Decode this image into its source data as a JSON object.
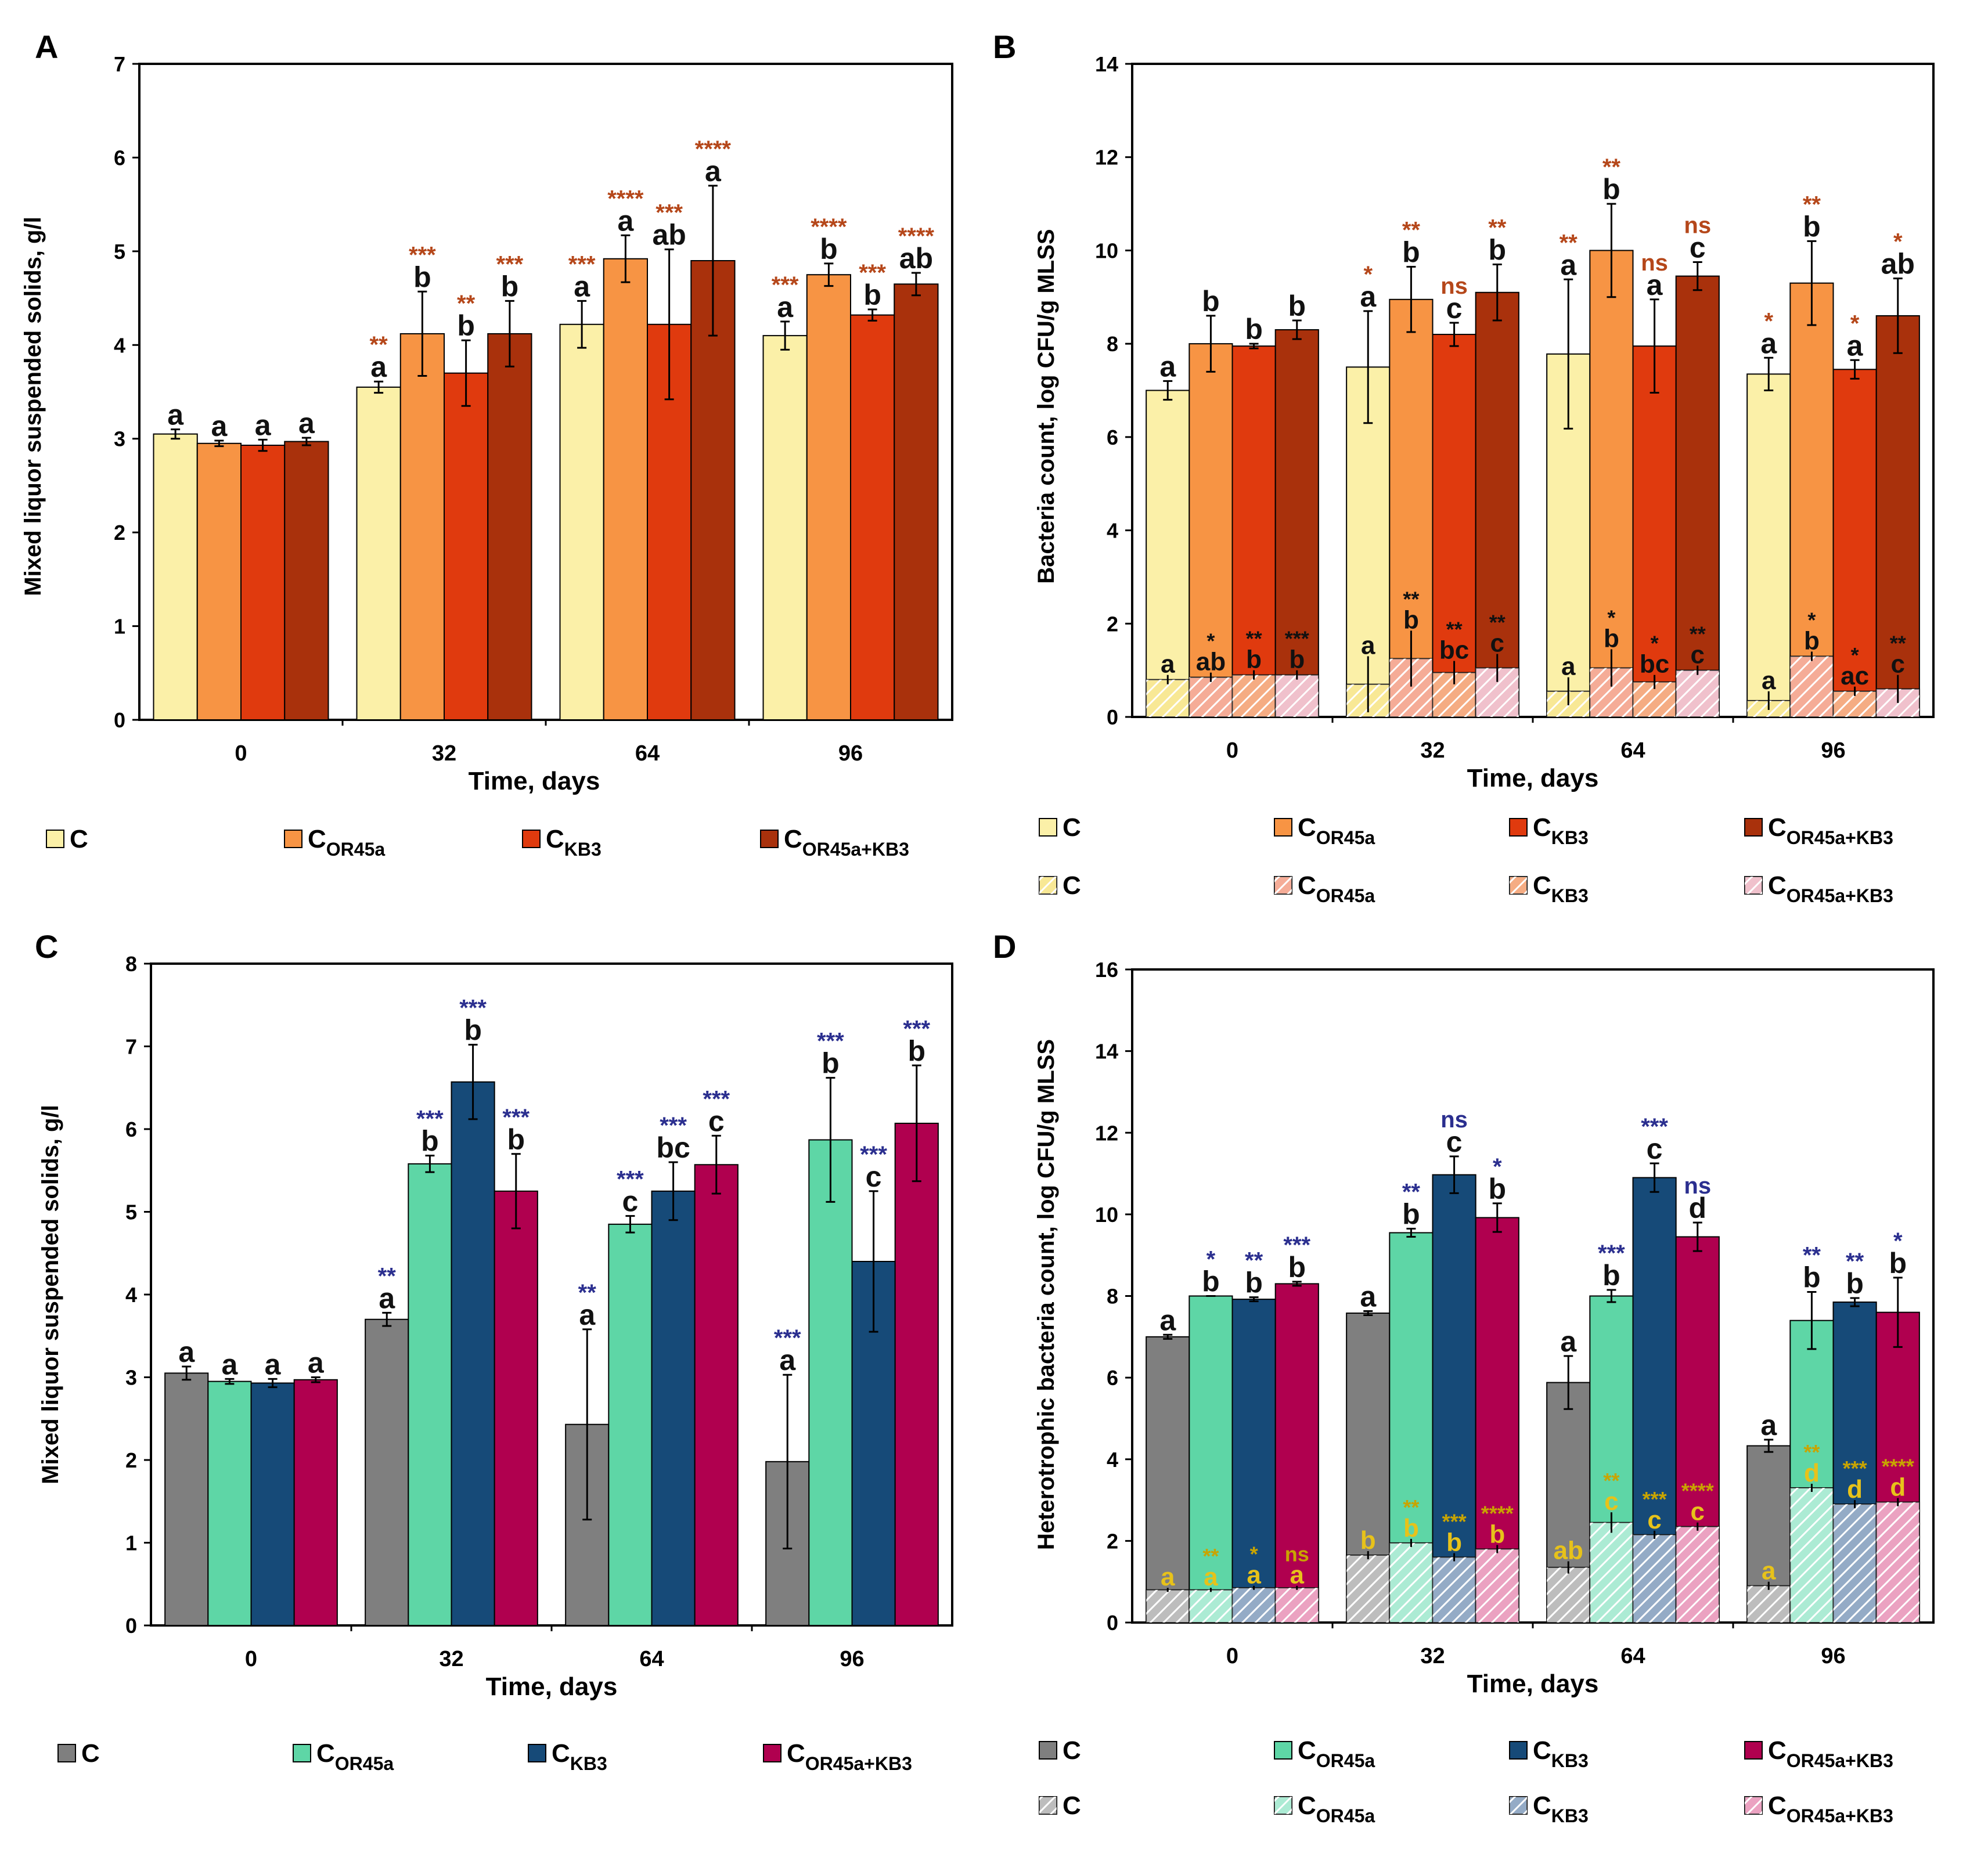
{
  "chart_data": [
    {
      "panel": "A",
      "type": "bar",
      "ylabel": "Mixed liquor suspended solids, g/l",
      "xlabel": "Time, days",
      "ylim": [
        0,
        7
      ],
      "yticks": [
        "0",
        "1",
        "2",
        "3",
        "4",
        "5",
        "6",
        "7"
      ],
      "categories": [
        "0",
        "32",
        "64",
        "96"
      ],
      "star_color": "#b5471a",
      "series": [
        {
          "name": "C",
          "color": "#fbf0a8",
          "values": [
            3.05,
            3.55,
            4.22,
            4.1
          ],
          "errors": [
            0.05,
            0.06,
            0.25,
            0.15
          ]
        },
        {
          "name": "COR45a",
          "color": "#f79444",
          "values": [
            2.95,
            4.12,
            4.92,
            4.75
          ],
          "errors": [
            0.03,
            0.45,
            0.25,
            0.12
          ]
        },
        {
          "name": "CKB3",
          "color": "#e03a0e",
          "values": [
            2.93,
            3.7,
            4.22,
            4.32
          ],
          "errors": [
            0.06,
            0.35,
            0.8,
            0.06
          ]
        },
        {
          "name": "COR45a+KB3",
          "color": "#a9310c",
          "values": [
            2.97,
            4.12,
            4.9,
            4.65
          ],
          "errors": [
            0.04,
            0.35,
            0.8,
            0.12
          ]
        }
      ],
      "letters": [
        [
          "a",
          "a",
          "a",
          "a"
        ],
        [
          "a",
          "b",
          "a",
          "b"
        ],
        [
          "a",
          "b",
          "ab",
          "b"
        ],
        [
          "a",
          "b",
          "a",
          "ab"
        ]
      ],
      "stars": [
        [
          "",
          "",
          "",
          ""
        ],
        [
          "**",
          "***",
          "**",
          "***"
        ],
        [
          "***",
          "****",
          "***",
          "****"
        ],
        [
          "***",
          "****",
          "***",
          "****"
        ]
      ],
      "legend": {
        "solid": [
          {
            "label": "C",
            "sub": ""
          },
          {
            "label": "C",
            "sub": "OR45a"
          },
          {
            "label": "C",
            "sub": "KB3"
          },
          {
            "label": "C",
            "sub": "OR45a+KB3"
          }
        ]
      }
    },
    {
      "panel": "B",
      "type": "bar",
      "ylabel": "Bacteria count, log CFU/g MLSS",
      "xlabel": "Time, days",
      "ylim": [
        0,
        14
      ],
      "yticks": [
        "0",
        "2",
        "4",
        "6",
        "8",
        "10",
        "12",
        "14"
      ],
      "categories": [
        "0",
        "32",
        "64",
        "96"
      ],
      "star_color": "#b5471a",
      "series": [
        {
          "name": "C",
          "color": "#fbf0a8",
          "values": [
            7.0,
            7.5,
            7.78,
            7.35
          ],
          "errors": [
            0.2,
            1.2,
            1.6,
            0.35
          ]
        },
        {
          "name": "COR45a",
          "color": "#f79444",
          "values": [
            8.0,
            8.95,
            10.0,
            9.3
          ],
          "errors": [
            0.6,
            0.7,
            1.0,
            0.9
          ]
        },
        {
          "name": "CKB3",
          "color": "#e03a0e",
          "values": [
            7.95,
            8.2,
            7.95,
            7.45
          ],
          "errors": [
            0.05,
            0.25,
            1.0,
            0.2
          ]
        },
        {
          "name": "COR45a+KB3",
          "color": "#a9310c",
          "values": [
            8.3,
            9.1,
            9.45,
            8.6
          ],
          "errors": [
            0.2,
            0.6,
            0.3,
            0.8
          ]
        }
      ],
      "letters": [
        [
          "a",
          "a",
          "a",
          "a"
        ],
        [
          "b",
          "b",
          "b",
          "b"
        ],
        [
          "b",
          "c",
          "a",
          "a"
        ],
        [
          "b",
          "b",
          "c",
          "ab"
        ]
      ],
      "stars": [
        [
          "",
          "",
          "",
          ""
        ],
        [
          "*",
          "**",
          "ns",
          "**"
        ],
        [
          "**",
          "**",
          "ns",
          "ns"
        ],
        [
          "*",
          "**",
          "*",
          "*"
        ]
      ],
      "hatched": {
        "star_color": "#111111",
        "series": [
          {
            "name": "C",
            "color": "#f4dc5c",
            "values": [
              0.8,
              0.7,
              0.55,
              0.35
            ],
            "errors": [
              0.1,
              0.6,
              0.3,
              0.2
            ]
          },
          {
            "name": "COR45a",
            "color": "#f08060",
            "values": [
              0.85,
              1.25,
              1.05,
              1.3
            ],
            "errors": [
              0.1,
              0.6,
              0.4,
              0.1
            ]
          },
          {
            "name": "CKB3",
            "color": "#f08040",
            "values": [
              0.9,
              0.95,
              0.75,
              0.55
            ],
            "errors": [
              0.1,
              0.25,
              0.15,
              0.1
            ]
          },
          {
            "name": "COR45a+KB3",
            "color": "#e8a0b0",
            "values": [
              0.9,
              1.05,
              1.0,
              0.6
            ],
            "errors": [
              0.1,
              0.3,
              0.1,
              0.3
            ]
          }
        ],
        "letters": [
          [
            "a",
            "a",
            "a",
            "a"
          ],
          [
            "ab",
            "b",
            "b",
            "b"
          ],
          [
            "b",
            "bc",
            "bc",
            "ac"
          ],
          [
            "b",
            "c",
            "c",
            "c"
          ]
        ],
        "stars": [
          [
            "",
            "*",
            "**",
            "***"
          ],
          [
            "",
            "**",
            "**",
            "**"
          ],
          [
            "",
            "*",
            "*",
            "**"
          ],
          [
            "",
            "*",
            "*",
            "**"
          ]
        ]
      },
      "legend": {
        "solid": [
          {
            "label": "C",
            "sub": ""
          },
          {
            "label": "C",
            "sub": "OR45a"
          },
          {
            "label": "C",
            "sub": "KB3"
          },
          {
            "label": "C",
            "sub": "OR45a+KB3"
          }
        ],
        "hatched": [
          {
            "label": "C",
            "sub": ""
          },
          {
            "label": "C",
            "sub": "OR45a"
          },
          {
            "label": "C",
            "sub": "KB3"
          },
          {
            "label": "C",
            "sub": "OR45a+KB3"
          }
        ]
      }
    },
    {
      "panel": "C",
      "type": "bar",
      "ylabel": "Mixed liquor suspended solids, g/l",
      "xlabel": "Time, days",
      "ylim": [
        0,
        8
      ],
      "yticks": [
        "0",
        "1",
        "2",
        "3",
        "4",
        "5",
        "6",
        "7",
        "8"
      ],
      "categories": [
        "0",
        "32",
        "64",
        "96"
      ],
      "star_color": "#2b2f8f",
      "series": [
        {
          "name": "C",
          "color": "#7f7f7f",
          "values": [
            3.05,
            3.7,
            2.43,
            1.98
          ],
          "errors": [
            0.08,
            0.08,
            1.15,
            1.05
          ]
        },
        {
          "name": "COR45a",
          "color": "#5ed6a6",
          "values": [
            2.95,
            5.58,
            4.85,
            5.87
          ],
          "errors": [
            0.03,
            0.1,
            0.1,
            0.75
          ]
        },
        {
          "name": "CKB3",
          "color": "#164a78",
          "values": [
            2.93,
            6.57,
            5.25,
            4.4
          ],
          "errors": [
            0.05,
            0.45,
            0.35,
            0.85
          ]
        },
        {
          "name": "COR45a+KB3",
          "color": "#b0004f",
          "values": [
            2.97,
            5.25,
            5.57,
            6.07
          ],
          "errors": [
            0.03,
            0.45,
            0.35,
            0.7
          ]
        }
      ],
      "letters": [
        [
          "a",
          "a",
          "a",
          "a"
        ],
        [
          "a",
          "b",
          "c",
          "b"
        ],
        [
          "a",
          "b",
          "bc",
          "c"
        ],
        [
          "a",
          "b",
          "c",
          "b"
        ]
      ],
      "stars": [
        [
          "",
          "",
          "",
          ""
        ],
        [
          "**",
          "***",
          "***",
          "***"
        ],
        [
          "**",
          "***",
          "***",
          "***"
        ],
        [
          "***",
          "***",
          "***",
          "***"
        ]
      ],
      "legend": {
        "solid": [
          {
            "label": "C",
            "sub": ""
          },
          {
            "label": "C",
            "sub": "OR45a"
          },
          {
            "label": "C",
            "sub": "KB3"
          },
          {
            "label": "C",
            "sub": "OR45a+KB3"
          }
        ]
      }
    },
    {
      "panel": "D",
      "type": "bar",
      "ylabel": "Heterotrophic bacteria count, log CFU/g MLSS",
      "xlabel": "Time, days",
      "ylim": [
        0,
        16
      ],
      "yticks": [
        "0",
        "2",
        "4",
        "6",
        "8",
        "10",
        "12",
        "14",
        "16"
      ],
      "categories": [
        "0",
        "32",
        "64",
        "96"
      ],
      "star_color": "#2b2f8f",
      "series": [
        {
          "name": "C",
          "color": "#7f7f7f",
          "values": [
            7.0,
            7.58,
            5.88,
            4.33
          ],
          "errors": [
            0.05,
            0.05,
            0.65,
            0.15
          ]
        },
        {
          "name": "COR45a",
          "color": "#5ed6a6",
          "values": [
            8.0,
            9.55,
            8.0,
            7.4
          ],
          "errors": [
            0.0,
            0.1,
            0.15,
            0.7
          ]
        },
        {
          "name": "CKB3",
          "color": "#164a78",
          "values": [
            7.92,
            10.97,
            10.9,
            7.85
          ],
          "errors": [
            0.05,
            0.45,
            0.35,
            0.1
          ]
        },
        {
          "name": "COR45a+KB3",
          "color": "#b0004f",
          "values": [
            8.3,
            9.92,
            9.45,
            7.6
          ],
          "errors": [
            0.05,
            0.35,
            0.35,
            0.85
          ]
        }
      ],
      "letters": [
        [
          "a",
          "a",
          "a",
          "a"
        ],
        [
          "b",
          "b",
          "b",
          "b"
        ],
        [
          "b",
          "c",
          "c",
          "b"
        ],
        [
          "b",
          "b",
          "d",
          "b"
        ]
      ],
      "stars": [
        [
          "",
          "*",
          "**",
          "***"
        ],
        [
          "",
          "**",
          "ns",
          "*"
        ],
        [
          "",
          "***",
          "***",
          "ns"
        ],
        [
          "",
          "**",
          "**",
          "*"
        ]
      ],
      "hatched": {
        "star_color": "#c8a400",
        "series": [
          {
            "name": "C",
            "color": "#9a9a9a",
            "values": [
              0.8,
              1.65,
              1.35,
              0.9
            ],
            "errors": [
              0.05,
              0.1,
              0.15,
              0.1
            ]
          },
          {
            "name": "COR45a",
            "color": "#7fe0bd",
            "values": [
              0.8,
              1.95,
              2.45,
              3.3
            ],
            "errors": [
              0.05,
              0.1,
              0.25,
              0.1
            ]
          },
          {
            "name": "CKB3",
            "color": "#5a7ea8",
            "values": [
              0.85,
              1.6,
              2.15,
              2.9
            ],
            "errors": [
              0.05,
              0.1,
              0.1,
              0.1
            ]
          },
          {
            "name": "COR45a+KB3",
            "color": "#e070a0",
            "values": [
              0.85,
              1.8,
              2.35,
              2.95
            ],
            "errors": [
              0.05,
              0.1,
              0.1,
              0.1
            ]
          }
        ],
        "letters": [
          [
            "a",
            "b",
            "ab",
            "a"
          ],
          [
            "a",
            "b",
            "c",
            "d"
          ],
          [
            "a",
            "b",
            "c",
            "d"
          ],
          [
            "a",
            "b",
            "c",
            "d"
          ]
        ],
        "stars": [
          [
            "",
            "**",
            "*",
            "ns"
          ],
          [
            "",
            "**",
            "***",
            "****"
          ],
          [
            "",
            "**",
            "***",
            "****"
          ],
          [
            "",
            "**",
            "***",
            "****"
          ]
        ]
      },
      "legend": {
        "solid": [
          {
            "label": "C",
            "sub": ""
          },
          {
            "label": "C",
            "sub": "OR45a"
          },
          {
            "label": "C",
            "sub": "KB3"
          },
          {
            "label": "C",
            "sub": "OR45a+KB3"
          }
        ],
        "hatched": [
          {
            "label": "C",
            "sub": ""
          },
          {
            "label": "C",
            "sub": "OR45a"
          },
          {
            "label": "C",
            "sub": "KB3"
          },
          {
            "label": "C",
            "sub": "OR45a+KB3"
          }
        ]
      }
    }
  ]
}
